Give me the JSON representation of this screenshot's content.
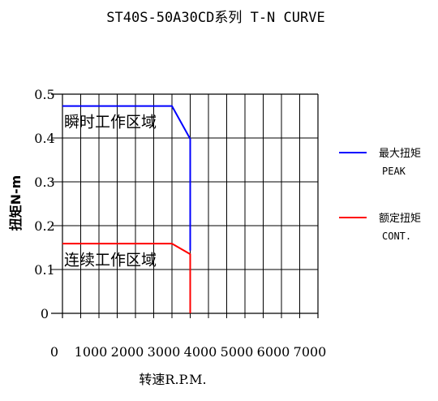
{
  "chart_data": {
    "type": "line",
    "title": "ST40S-50A30CD系列 T-N CURVE",
    "xlabel": "转速R.P.M.",
    "ylabel": "扭矩N-m",
    "xlim": [
      0,
      7000
    ],
    "ylim": [
      0,
      0.5
    ],
    "x_ticks": [
      0,
      1000,
      2000,
      3000,
      4000,
      5000,
      6000,
      7000
    ],
    "x_tick_labels": [
      "0",
      "1000",
      "2000",
      "3000",
      "4000",
      "5000",
      "6000",
      "7000"
    ],
    "y_ticks": [
      0,
      0.1,
      0.2,
      0.3,
      0.4,
      0.5
    ],
    "y_tick_labels": [
      "0",
      "0.1",
      "0.2",
      "0.3",
      "0.4",
      "0.5"
    ],
    "grid": true,
    "grid_x_step": 500,
    "legend_position": "right",
    "series": [
      {
        "name": "最大扭矩",
        "name_en": "PEAK",
        "color": "#0000ff",
        "x": [
          0,
          3000,
          3500,
          3500
        ],
        "y": [
          0.473,
          0.473,
          0.398,
          0.143
        ]
      },
      {
        "name": "额定扭矩",
        "name_en": "CONT.",
        "color": "#ff0000",
        "x": [
          0,
          3000,
          3500,
          3500
        ],
        "y": [
          0.159,
          0.159,
          0.135,
          0
        ]
      }
    ],
    "annotations": [
      {
        "text": "瞬时工作区域",
        "x": 0,
        "y": 0.44
      },
      {
        "text": "连续工作区域",
        "x": 0,
        "y": 0.125
      }
    ]
  }
}
